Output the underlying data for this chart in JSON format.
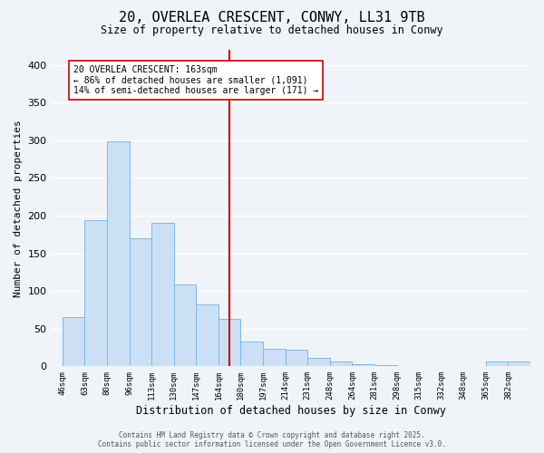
{
  "title": "20, OVERLEA CRESCENT, CONWY, LL31 9TB",
  "subtitle": "Size of property relative to detached houses in Conwy",
  "xlabel": "Distribution of detached houses by size in Conwy",
  "ylabel": "Number of detached properties",
  "bar_color": "#cce0f5",
  "bar_edge_color": "#7ab8e8",
  "background_color": "#f0f4f8",
  "grid_color": "#ffffff",
  "annotation_line_bin": 7.5,
  "annotation_text_line1": "20 OVERLEA CRESCENT: 163sqm",
  "annotation_text_line2": "← 86% of detached houses are smaller (1,091)",
  "annotation_text_line3": "14% of semi-detached houses are larger (171) →",
  "annotation_box_color": "#ffffff",
  "annotation_line_color": "#cc0000",
  "footer_line1": "Contains HM Land Registry data © Crown copyright and database right 2025.",
  "footer_line2": "Contains public sector information licensed under the Open Government Licence v3.0.",
  "bin_labels": [
    "46sqm",
    "63sqm",
    "80sqm",
    "96sqm",
    "113sqm",
    "130sqm",
    "147sqm",
    "164sqm",
    "180sqm",
    "197sqm",
    "214sqm",
    "231sqm",
    "248sqm",
    "264sqm",
    "281sqm",
    "298sqm",
    "315sqm",
    "332sqm",
    "348sqm",
    "365sqm",
    "382sqm"
  ],
  "counts": [
    65,
    194,
    298,
    170,
    190,
    109,
    82,
    63,
    33,
    23,
    22,
    11,
    6,
    3,
    2,
    1,
    0,
    1,
    0,
    7,
    6
  ],
  "ylim": [
    0,
    420
  ],
  "yticks": [
    0,
    50,
    100,
    150,
    200,
    250,
    300,
    350,
    400
  ]
}
